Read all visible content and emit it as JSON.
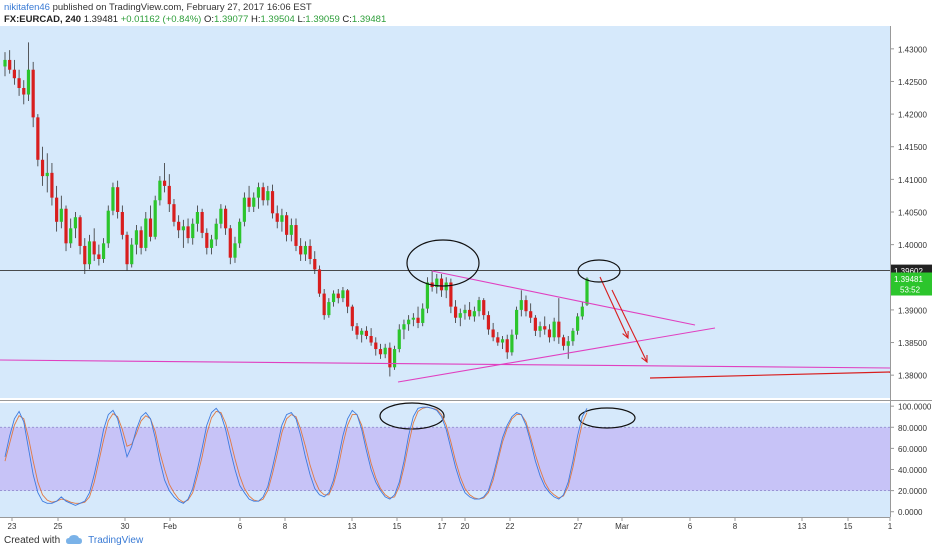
{
  "header": {
    "user": "nikitafen46",
    "published": "published on TradingView.com, February 27, 2017 16:06 EST",
    "symbol": "FX:EURCAD, 240",
    "last": "1.39481",
    "change": "+0.01162 (+0.84%)",
    "open_label": "O:",
    "open": "1.39077",
    "high_label": "H:",
    "high": "1.39504",
    "low_label": "L:",
    "low": "1.39059",
    "close_label": "C:",
    "close": "1.39481"
  },
  "footer": {
    "created_with": "Created with",
    "brand": "TradingView",
    "brand_icon": "tradingview-cloud-icon"
  },
  "colors": {
    "background": "#d6e9fb",
    "up": "#2cc52c",
    "down": "#d81e1e",
    "pink": "#e040c0",
    "red": "#d81e1e",
    "hline": "#333333",
    "stoch_band": "#c7c3f7",
    "k_line": "#3d7be0",
    "d_line": "#e07a44"
  },
  "chart_data": {
    "type": "candlestick",
    "symbol": "FX:EURCAD",
    "timeframe": "240",
    "y_ticks": [
      "1.43000",
      "1.42500",
      "1.42000",
      "1.41500",
      "1.41000",
      "1.40500",
      "1.40000",
      "1.39500",
      "1.39000",
      "1.38500",
      "1.38000"
    ],
    "ylim": [
      1.3765,
      1.4335
    ],
    "x_ticks": [
      "23",
      "25",
      "30",
      "Feb",
      "6",
      "8",
      "13",
      "15",
      "17",
      "20",
      "22",
      "27",
      "Mar",
      "6",
      "8",
      "13",
      "15",
      "1"
    ],
    "price_line": {
      "value": 1.39602,
      "label": "1.39602"
    },
    "last_price": {
      "value": 1.39481,
      "label": "1.39481",
      "countdown": "53:52"
    },
    "ohlc": [
      [
        1.4273,
        1.4295,
        1.4258,
        1.4283
      ],
      [
        1.4283,
        1.4298,
        1.4262,
        1.4268
      ],
      [
        1.4268,
        1.4283,
        1.4245,
        1.4255
      ],
      [
        1.4255,
        1.4268,
        1.4228,
        1.424
      ],
      [
        1.424,
        1.4252,
        1.4215,
        1.423
      ],
      [
        1.423,
        1.431,
        1.422,
        1.4268
      ],
      [
        1.4268,
        1.428,
        1.418,
        1.4195
      ],
      [
        1.4195,
        1.42,
        1.412,
        1.413
      ],
      [
        1.413,
        1.415,
        1.409,
        1.4105
      ],
      [
        1.4105,
        1.414,
        1.408,
        1.411
      ],
      [
        1.411,
        1.4125,
        1.406,
        1.4072
      ],
      [
        1.4072,
        1.409,
        1.402,
        1.4035
      ],
      [
        1.4035,
        1.4075,
        1.4025,
        1.4055
      ],
      [
        1.4055,
        1.406,
        1.399,
        1.4002
      ],
      [
        1.4002,
        1.404,
        1.3995,
        1.4025
      ],
      [
        1.4025,
        1.405,
        1.401,
        1.4042
      ],
      [
        1.4042,
        1.4045,
        1.3985,
        1.3998
      ],
      [
        1.3998,
        1.401,
        1.3955,
        1.397
      ],
      [
        1.397,
        1.4015,
        1.3962,
        1.4005
      ],
      [
        1.4005,
        1.4025,
        1.3975,
        1.3985
      ],
      [
        1.3985,
        1.4,
        1.3968,
        1.3978
      ],
      [
        1.3978,
        1.401,
        1.3972,
        1.4002
      ],
      [
        1.4002,
        1.406,
        1.3995,
        1.4052
      ],
      [
        1.4052,
        1.4095,
        1.4045,
        1.4088
      ],
      [
        1.4088,
        1.4098,
        1.404,
        1.405
      ],
      [
        1.405,
        1.406,
        1.4008,
        1.4015
      ],
      [
        1.4015,
        1.402,
        1.396,
        1.397
      ],
      [
        1.397,
        1.401,
        1.3965,
        1.4
      ],
      [
        1.4,
        1.403,
        1.3985,
        1.4022
      ],
      [
        1.4022,
        1.4028,
        1.3985,
        1.3995
      ],
      [
        1.3995,
        1.405,
        1.399,
        1.404
      ],
      [
        1.404,
        1.406,
        1.4005,
        1.4012
      ],
      [
        1.4012,
        1.4075,
        1.4008,
        1.4068
      ],
      [
        1.4068,
        1.4105,
        1.406,
        1.4098
      ],
      [
        1.4098,
        1.4125,
        1.408,
        1.409
      ],
      [
        1.409,
        1.4108,
        1.405,
        1.4062
      ],
      [
        1.4062,
        1.407,
        1.4028,
        1.4035
      ],
      [
        1.4035,
        1.4045,
        1.401,
        1.4022
      ],
      [
        1.4022,
        1.4038,
        1.3995,
        1.4028
      ],
      [
        1.4028,
        1.404,
        1.4002,
        1.401
      ],
      [
        1.401,
        1.404,
        1.4,
        1.4032
      ],
      [
        1.4032,
        1.406,
        1.402,
        1.405
      ],
      [
        1.405,
        1.4055,
        1.401,
        1.4018
      ],
      [
        1.4018,
        1.4025,
        1.3985,
        1.3995
      ],
      [
        1.3995,
        1.4015,
        1.3985,
        1.4008
      ],
      [
        1.4008,
        1.404,
        1.3998,
        1.4032
      ],
      [
        1.4032,
        1.4062,
        1.4025,
        1.4055
      ],
      [
        1.4055,
        1.406,
        1.4015,
        1.4025
      ],
      [
        1.4025,
        1.403,
        1.397,
        1.398
      ],
      [
        1.398,
        1.4012,
        1.3972,
        1.4002
      ],
      [
        1.4002,
        1.404,
        1.3995,
        1.4035
      ],
      [
        1.4035,
        1.408,
        1.4028,
        1.4072
      ],
      [
        1.4072,
        1.409,
        1.405,
        1.4058
      ],
      [
        1.4058,
        1.408,
        1.405,
        1.4072
      ],
      [
        1.4072,
        1.4095,
        1.4055,
        1.4088
      ],
      [
        1.4088,
        1.4095,
        1.406,
        1.4068
      ],
      [
        1.4068,
        1.409,
        1.406,
        1.4082
      ],
      [
        1.4082,
        1.4092,
        1.404,
        1.4048
      ],
      [
        1.4048,
        1.406,
        1.4025,
        1.4035
      ],
      [
        1.4035,
        1.4055,
        1.402,
        1.4045
      ],
      [
        1.4045,
        1.405,
        1.4005,
        1.4015
      ],
      [
        1.4015,
        1.404,
        1.4005,
        1.403
      ],
      [
        1.403,
        1.404,
        1.399,
        1.3998
      ],
      [
        1.3998,
        1.401,
        1.3975,
        1.3985
      ],
      [
        1.3985,
        1.4005,
        1.3975,
        1.3998
      ],
      [
        1.3998,
        1.4008,
        1.397,
        1.3978
      ],
      [
        1.3978,
        1.399,
        1.3955,
        1.3962
      ],
      [
        1.3962,
        1.3968,
        1.392,
        1.3925
      ],
      [
        1.3925,
        1.3932,
        1.3885,
        1.3892
      ],
      [
        1.3892,
        1.3918,
        1.3888,
        1.3912
      ],
      [
        1.3912,
        1.393,
        1.3905,
        1.3925
      ],
      [
        1.3925,
        1.3932,
        1.391,
        1.3918
      ],
      [
        1.3918,
        1.3935,
        1.3912,
        1.393
      ],
      [
        1.393,
        1.3932,
        1.3895,
        1.3905
      ],
      [
        1.3905,
        1.3908,
        1.3868,
        1.3875
      ],
      [
        1.3875,
        1.388,
        1.3855,
        1.3862
      ],
      [
        1.3862,
        1.3872,
        1.385,
        1.3868
      ],
      [
        1.3868,
        1.3875,
        1.3855,
        1.386
      ],
      [
        1.386,
        1.3872,
        1.3845,
        1.385
      ],
      [
        1.385,
        1.3858,
        1.383,
        1.384
      ],
      [
        1.384,
        1.3848,
        1.3825,
        1.3832
      ],
      [
        1.3832,
        1.3848,
        1.3826,
        1.3842
      ],
      [
        1.3842,
        1.385,
        1.3798,
        1.3812
      ],
      [
        1.3812,
        1.3845,
        1.3808,
        1.384
      ],
      [
        1.384,
        1.3878,
        1.3835,
        1.387
      ],
      [
        1.387,
        1.3885,
        1.3855,
        1.3878
      ],
      [
        1.3878,
        1.3892,
        1.3868,
        1.3885
      ],
      [
        1.3885,
        1.3895,
        1.3875,
        1.3888
      ],
      [
        1.3888,
        1.3905,
        1.3872,
        1.388
      ],
      [
        1.388,
        1.391,
        1.3875,
        1.3902
      ],
      [
        1.3902,
        1.395,
        1.3895,
        1.3942
      ],
      [
        1.3942,
        1.396,
        1.3928,
        1.3935
      ],
      [
        1.3935,
        1.3955,
        1.3925,
        1.3948
      ],
      [
        1.3948,
        1.3955,
        1.392,
        1.393
      ],
      [
        1.393,
        1.395,
        1.3918,
        1.3942
      ],
      [
        1.3942,
        1.3948,
        1.3895,
        1.3905
      ],
      [
        1.3905,
        1.3915,
        1.388,
        1.3888
      ],
      [
        1.3888,
        1.3902,
        1.3875,
        1.3895
      ],
      [
        1.3895,
        1.3908,
        1.3885,
        1.39
      ],
      [
        1.39,
        1.3912,
        1.3885,
        1.389
      ],
      [
        1.389,
        1.3905,
        1.3882,
        1.3898
      ],
      [
        1.3898,
        1.392,
        1.389,
        1.3915
      ],
      [
        1.3915,
        1.3918,
        1.3885,
        1.3892
      ],
      [
        1.3892,
        1.3898,
        1.3862,
        1.387
      ],
      [
        1.387,
        1.388,
        1.3852,
        1.3858
      ],
      [
        1.3858,
        1.3866,
        1.3845,
        1.385
      ],
      [
        1.385,
        1.386,
        1.384,
        1.3855
      ],
      [
        1.3855,
        1.3862,
        1.3825,
        1.3835
      ],
      [
        1.3835,
        1.387,
        1.383,
        1.3862
      ],
      [
        1.3862,
        1.3905,
        1.3855,
        1.39
      ],
      [
        1.39,
        1.393,
        1.389,
        1.3915
      ],
      [
        1.3915,
        1.3922,
        1.389,
        1.3898
      ],
      [
        1.3898,
        1.391,
        1.388,
        1.3888
      ],
      [
        1.3888,
        1.3892,
        1.386,
        1.3868
      ],
      [
        1.3868,
        1.3882,
        1.3858,
        1.3875
      ],
      [
        1.3875,
        1.389,
        1.3862,
        1.387
      ],
      [
        1.387,
        1.3878,
        1.385,
        1.3858
      ],
      [
        1.3858,
        1.3888,
        1.3852,
        1.3882
      ],
      [
        1.3882,
        1.3918,
        1.3848,
        1.3858
      ],
      [
        1.3858,
        1.3862,
        1.3838,
        1.3845
      ],
      [
        1.3845,
        1.386,
        1.3825,
        1.3852
      ],
      [
        1.3852,
        1.3872,
        1.3845,
        1.3868
      ],
      [
        1.3868,
        1.3895,
        1.3862,
        1.389
      ],
      [
        1.389,
        1.3912,
        1.3885,
        1.3905
      ],
      [
        1.3908,
        1.395,
        1.3906,
        1.3948
      ]
    ],
    "drawings": {
      "triangle_upper": [
        [
          432,
          271
        ],
        [
          695,
          325
        ]
      ],
      "triangle_lower": [
        [
          398,
          382
        ],
        [
          715,
          328
        ]
      ],
      "support_line": [
        [
          0,
          360
        ],
        [
          890,
          368
        ]
      ],
      "red_line": [
        [
          650,
          378
        ],
        [
          890,
          372
        ]
      ],
      "arrow1": [
        [
          600,
          277
        ],
        [
          628,
          338
        ]
      ],
      "arrow2": [
        [
          612,
          290
        ],
        [
          647,
          362
        ]
      ],
      "circle_top": {
        "cx": 443,
        "cy": 263,
        "rx": 36,
        "ry": 23
      },
      "circle_right": {
        "cx": 599,
        "cy": 271,
        "rx": 21,
        "ry": 11
      },
      "circle_stoch1": {
        "cx": 412,
        "cy": 416,
        "rx": 32,
        "ry": 13
      },
      "circle_stoch2": {
        "cx": 607,
        "cy": 418,
        "rx": 28,
        "ry": 10
      }
    },
    "indicator": {
      "name": "Stochastic",
      "y_ticks": [
        "100.0000",
        "80.0000",
        "60.0000",
        "40.0000",
        "20.0000",
        "0.0000"
      ],
      "ylim": [
        -5,
        103
      ],
      "band": [
        20,
        80
      ],
      "k": [
        52,
        72,
        88,
        95,
        85,
        60,
        35,
        18,
        10,
        8,
        8,
        10,
        14,
        10,
        8,
        6,
        8,
        10,
        18,
        35,
        55,
        78,
        92,
        96,
        88,
        70,
        52,
        62,
        78,
        90,
        94,
        88,
        70,
        48,
        30,
        20,
        14,
        10,
        8,
        12,
        22,
        40,
        60,
        82,
        94,
        98,
        92,
        78,
        58,
        40,
        25,
        18,
        12,
        10,
        10,
        14,
        24,
        42,
        62,
        82,
        92,
        94,
        88,
        72,
        52,
        35,
        22,
        16,
        14,
        18,
        30,
        50,
        72,
        88,
        96,
        92,
        78,
        58,
        40,
        28,
        20,
        14,
        12,
        16,
        28,
        48,
        72,
        90,
        98,
        99,
        99,
        98,
        96,
        90,
        78,
        60,
        42,
        28,
        18,
        14,
        12,
        12,
        14,
        20,
        34,
        52,
        70,
        82,
        90,
        94,
        92,
        82,
        66,
        48,
        34,
        24,
        18,
        14,
        12,
        16,
        28,
        48,
        72,
        90,
        98
      ],
      "d": [
        48,
        65,
        82,
        91,
        88,
        70,
        48,
        28,
        16,
        11,
        9,
        10,
        12,
        11,
        9,
        8,
        8,
        9,
        14,
        28,
        48,
        68,
        86,
        93,
        90,
        78,
        62,
        64,
        74,
        86,
        91,
        88,
        76,
        56,
        40,
        26,
        18,
        12,
        9,
        11,
        18,
        34,
        52,
        74,
        89,
        95,
        94,
        84,
        68,
        50,
        34,
        22,
        15,
        11,
        10,
        12,
        20,
        36,
        55,
        75,
        88,
        92,
        90,
        78,
        62,
        44,
        30,
        20,
        16,
        16,
        26,
        42,
        64,
        82,
        92,
        92,
        82,
        64,
        46,
        32,
        22,
        16,
        13,
        14,
        24,
        42,
        64,
        84,
        95,
        98,
        99,
        98,
        97,
        92,
        82,
        66,
        48,
        33,
        22,
        16,
        13,
        12,
        13,
        18,
        30,
        48,
        66,
        79,
        88,
        92,
        92,
        85,
        70,
        54,
        40,
        28,
        20,
        16,
        13,
        15,
        24,
        42,
        64,
        84,
        94
      ]
    }
  }
}
